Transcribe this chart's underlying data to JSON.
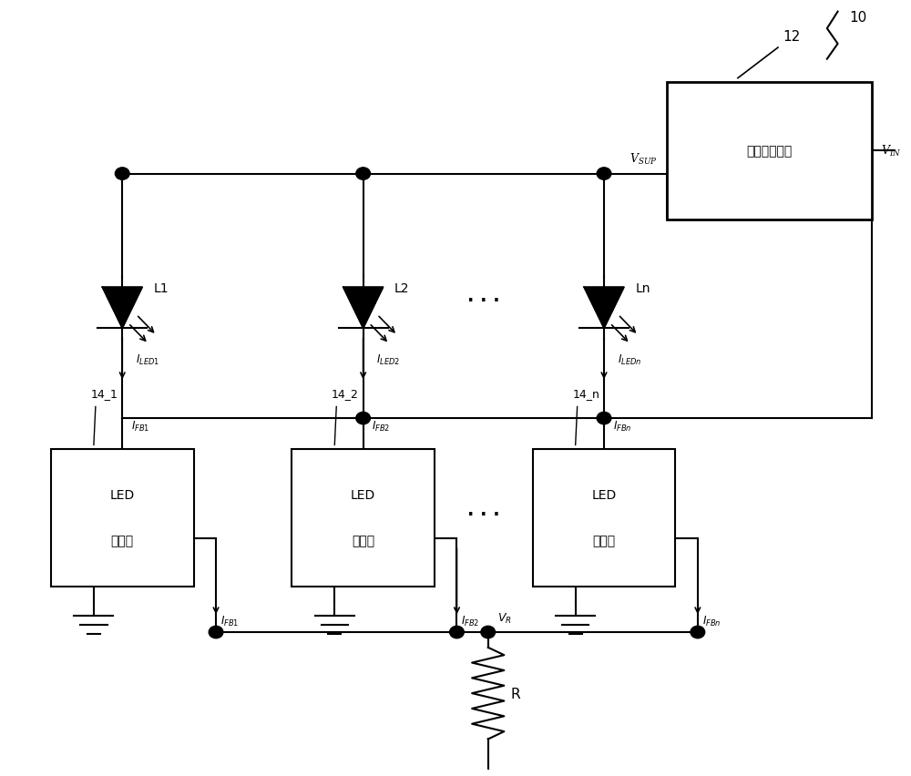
{
  "background_color": "#ffffff",
  "figure_width": 10.0,
  "figure_height": 8.53,
  "dpi": 100,
  "supply_box_text": "电压供给电路",
  "driver_labels": [
    "14_1",
    "14_2",
    "14_n"
  ],
  "led_labels": [
    "L1",
    "L2",
    "Ln"
  ],
  "i_led_labels": [
    "$I_{LED1}$",
    "$I_{LED2}$",
    "$I_{LEDn}$"
  ],
  "i_fb_top_labels": [
    "$I_{FB1}$",
    "$I_{FB2}$",
    "$I_{FBn}$"
  ],
  "i_fb_bot_labels": [
    "$I_{FB1}$",
    "$I_{FB2}$",
    "$I_{FBn}$"
  ],
  "ref10": "10",
  "ref12": "12",
  "vsup": "$V_{SUP}$",
  "vin": "$V_{IN}$",
  "vr": "$V_R$",
  "r_label": "R",
  "dots": ". . .",
  "line_color": "#000000"
}
